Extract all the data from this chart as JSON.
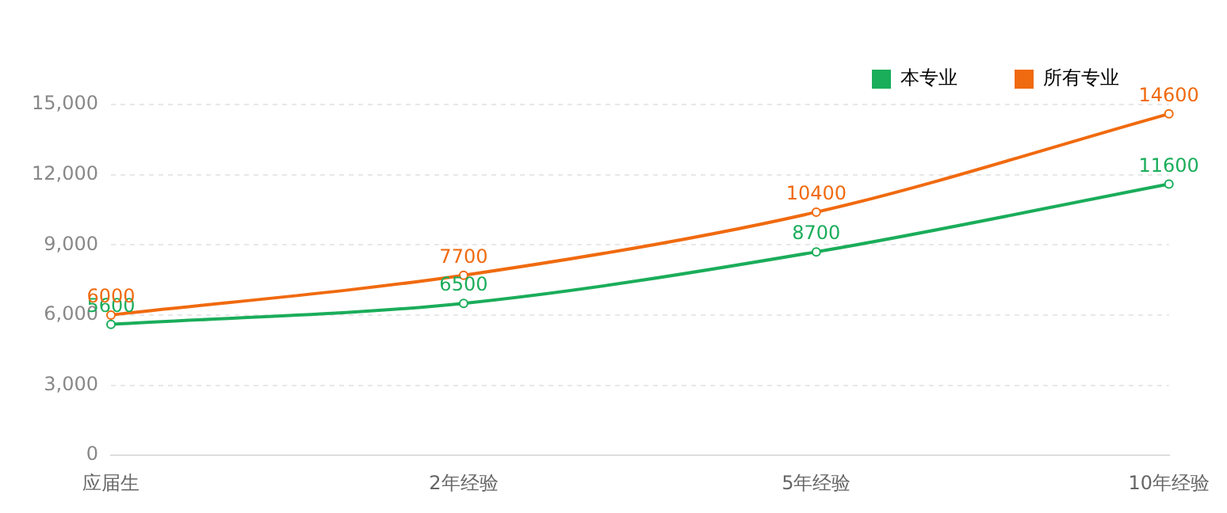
{
  "chart_data": {
    "type": "line",
    "categories": [
      "应届生",
      "2年经验",
      "5年经验",
      "10年经验"
    ],
    "series": [
      {
        "name": "本专业",
        "color": "#1aad5a",
        "values": [
          5600,
          6500,
          8700,
          11600
        ]
      },
      {
        "name": "所有专业",
        "color": "#f06a0f",
        "values": [
          6000,
          7700,
          10400,
          14600
        ]
      }
    ],
    "ylim": [
      0,
      15000
    ],
    "yticks": [
      0,
      {
        "value": 3000,
        "label": "3,000"
      },
      {
        "value": 6000,
        "label": "6,000"
      },
      {
        "value": 9000,
        "label": "9,000"
      },
      {
        "value": 12000,
        "label": "12,000"
      },
      {
        "value": 15000,
        "label": "15,000"
      }
    ],
    "grid": "y",
    "legend": "top right",
    "marker": "circle",
    "line_style": "solid",
    "data_labels": true
  }
}
